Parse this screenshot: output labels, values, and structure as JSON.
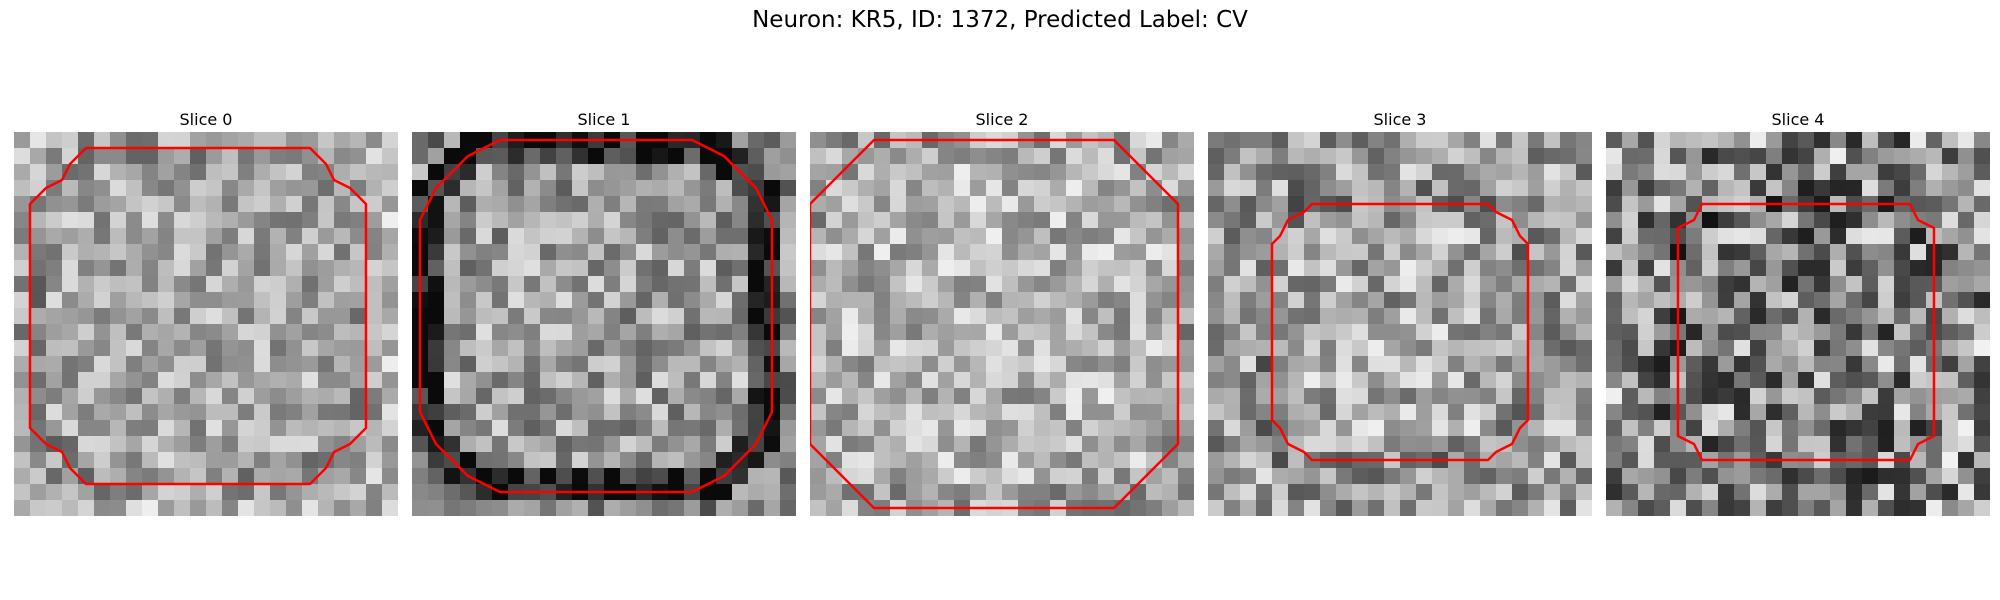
{
  "figure": {
    "title": "Neuron: KR5, ID: 1372, Predicted Label: CV"
  },
  "slices": [
    {
      "label": "Slice 0"
    },
    {
      "label": "Slice 1"
    },
    {
      "label": "Slice 2"
    },
    {
      "label": "Slice 3"
    },
    {
      "label": "Slice 4"
    }
  ],
  "colors": {
    "contour": "#ff0000",
    "background": "#ffffff"
  }
}
